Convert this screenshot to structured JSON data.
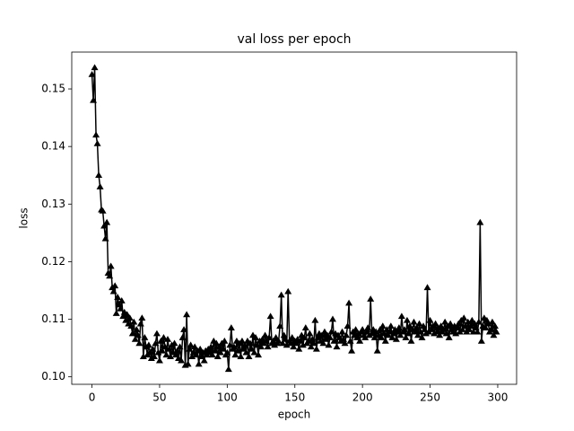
{
  "chart_data": {
    "type": "line",
    "title": "val loss per epoch",
    "xlabel": "epoch",
    "ylabel": "loss",
    "xlim": [
      -14.95,
      313.95
    ],
    "ylim": [
      0.0987,
      0.1564
    ],
    "xticks": [
      0,
      50,
      100,
      150,
      200,
      250,
      300
    ],
    "yticks": [
      {
        "value": 0.1,
        "label": "0.10"
      },
      0.11,
      0.12,
      0.13,
      0.14,
      0.15
    ],
    "grid": false,
    "marker": "triangle",
    "series": [
      {
        "name": "val loss",
        "color": "#000000",
        "x": [
          0,
          1,
          2,
          3,
          4,
          5,
          6,
          7,
          8,
          9,
          10,
          11,
          12,
          13,
          14,
          15,
          16,
          17,
          18,
          19,
          20,
          21,
          22,
          23,
          24,
          25,
          26,
          27,
          28,
          29,
          30,
          31,
          32,
          33,
          34,
          35,
          36,
          37,
          38,
          39,
          40,
          41,
          42,
          43,
          44,
          45,
          46,
          47,
          48,
          49,
          50,
          51,
          52,
          53,
          54,
          55,
          56,
          57,
          58,
          59,
          60,
          61,
          62,
          63,
          64,
          65,
          66,
          67,
          68,
          69,
          70,
          71,
          72,
          73,
          74,
          75,
          76,
          77,
          78,
          79,
          80,
          81,
          82,
          83,
          84,
          85,
          86,
          87,
          88,
          89,
          90,
          91,
          92,
          93,
          94,
          95,
          96,
          97,
          98,
          99,
          100,
          101,
          102,
          103,
          104,
          105,
          106,
          107,
          108,
          109,
          110,
          111,
          112,
          113,
          114,
          115,
          116,
          117,
          118,
          119,
          120,
          121,
          122,
          123,
          124,
          125,
          126,
          127,
          128,
          129,
          130,
          131,
          132,
          133,
          134,
          135,
          136,
          137,
          138,
          139,
          140,
          141,
          142,
          143,
          144,
          145,
          146,
          147,
          148,
          149,
          150,
          151,
          152,
          153,
          154,
          155,
          156,
          157,
          158,
          159,
          160,
          161,
          162,
          163,
          164,
          165,
          166,
          167,
          168,
          169,
          170,
          171,
          172,
          173,
          174,
          175,
          176,
          177,
          178,
          179,
          180,
          181,
          182,
          183,
          184,
          185,
          186,
          187,
          188,
          189,
          190,
          191,
          192,
          193,
          194,
          195,
          196,
          197,
          198,
          199,
          200,
          201,
          202,
          203,
          204,
          205,
          206,
          207,
          208,
          209,
          210,
          211,
          212,
          213,
          214,
          215,
          216,
          217,
          218,
          219,
          220,
          221,
          222,
          223,
          224,
          225,
          226,
          227,
          228,
          229,
          230,
          231,
          232,
          233,
          234,
          235,
          236,
          237,
          238,
          239,
          240,
          241,
          242,
          243,
          244,
          245,
          246,
          247,
          248,
          249,
          250,
          251,
          252,
          253,
          254,
          255,
          256,
          257,
          258,
          259,
          260,
          261,
          262,
          263,
          264,
          265,
          266,
          267,
          268,
          269,
          270,
          271,
          272,
          273,
          274,
          275,
          276,
          277,
          278,
          279,
          280,
          281,
          282,
          283,
          284,
          285,
          286,
          287,
          288,
          289,
          290,
          291,
          292,
          293,
          294,
          295,
          296,
          297,
          298,
          299
        ],
        "values": [
          0.1525,
          0.148,
          0.1537,
          0.142,
          0.1405,
          0.135,
          0.133,
          0.129,
          0.1288,
          0.1262,
          0.124,
          0.1268,
          0.118,
          0.1175,
          0.1192,
          0.1155,
          0.1148,
          0.1158,
          0.111,
          0.1138,
          0.1125,
          0.1118,
          0.1132,
          0.1105,
          0.1112,
          0.1098,
          0.1108,
          0.1092,
          0.1102,
          0.1088,
          0.1075,
          0.1095,
          0.1065,
          0.1082,
          0.1072,
          0.1058,
          0.1092,
          0.1102,
          0.1035,
          0.1068,
          0.1052,
          0.1038,
          0.1055,
          0.1042,
          0.1032,
          0.1048,
          0.1035,
          0.1058,
          0.1075,
          0.1042,
          0.1028,
          0.1062,
          0.1045,
          0.1068,
          0.1052,
          0.1038,
          0.1065,
          0.1048,
          0.1035,
          0.1055,
          0.1042,
          0.1058,
          0.1038,
          0.1045,
          0.1032,
          0.1052,
          0.1028,
          0.1068,
          0.1082,
          0.102,
          0.1108,
          0.1022,
          0.1048,
          0.1055,
          0.1035,
          0.1042,
          0.1052,
          0.1038,
          0.1045,
          0.1022,
          0.1048,
          0.1035,
          0.1042,
          0.1028,
          0.1045,
          0.1038,
          0.1048,
          0.1042,
          0.1052,
          0.1038,
          0.1062,
          0.1045,
          0.1058,
          0.1035,
          0.1052,
          0.1042,
          0.1058,
          0.1048,
          0.1062,
          0.1038,
          0.1042,
          0.1013,
          0.1055,
          0.1085,
          0.1048,
          0.1052,
          0.1038,
          0.1062,
          0.1045,
          0.1058,
          0.1035,
          0.1062,
          0.1048,
          0.1055,
          0.1042,
          0.1062,
          0.1035,
          0.1058,
          0.1048,
          0.1072,
          0.1042,
          0.1068,
          0.1055,
          0.1038,
          0.1062,
          0.1052,
          0.1065,
          0.1058,
          0.1072,
          0.1062,
          0.1052,
          0.1068,
          0.1105,
          0.1058,
          0.1062,
          0.1055,
          0.1068,
          0.1058,
          0.1062,
          0.1088,
          0.1142,
          0.1058,
          0.1072,
          0.1065,
          0.1055,
          0.1148,
          0.1062,
          0.1058,
          0.1068,
          0.1052,
          0.1062,
          0.1058,
          0.1065,
          0.1048,
          0.1062,
          0.1072,
          0.1055,
          0.1068,
          0.1085,
          0.1058,
          0.1062,
          0.1075,
          0.1052,
          0.1065,
          0.1058,
          0.1098,
          0.1048,
          0.1068,
          0.1075,
          0.1062,
          0.1072,
          0.1058,
          0.1078,
          0.1065,
          0.1072,
          0.1055,
          0.1068,
          0.1078,
          0.11,
          0.1062,
          0.1075,
          0.1052,
          0.1072,
          0.1068,
          0.1062,
          0.1078,
          0.1065,
          0.1058,
          0.1072,
          0.1088,
          0.1128,
          0.1062,
          0.1045,
          0.1078,
          0.1072,
          0.1082,
          0.1068,
          0.1075,
          0.1062,
          0.1078,
          0.1082,
          0.1072,
          0.1068,
          0.1078,
          0.1085,
          0.1072,
          0.1135,
          0.1075,
          0.1082,
          0.1068,
          0.1078,
          0.1045,
          0.1072,
          0.1082,
          0.1068,
          0.1088,
          0.1075,
          0.1062,
          0.1082,
          0.1072,
          0.1078,
          0.1088,
          0.1068,
          0.1075,
          0.1082,
          0.1065,
          0.1078,
          0.1085,
          0.1072,
          0.1105,
          0.1078,
          0.1082,
          0.1068,
          0.1098,
          0.1075,
          0.1088,
          0.1062,
          0.1082,
          0.1095,
          0.1078,
          0.1085,
          0.1072,
          0.1092,
          0.1078,
          0.1068,
          0.1088,
          0.1082,
          0.1075,
          0.1155,
          0.1078,
          0.1098,
          0.1082,
          0.1088,
          0.1075,
          0.1092,
          0.1078,
          0.1085,
          0.1072,
          0.1088,
          0.1078,
          0.1082,
          0.1095,
          0.1075,
          0.1088,
          0.1068,
          0.1092,
          0.1082,
          0.1078,
          0.1088,
          0.1075,
          0.1085,
          0.1092,
          0.1078,
          0.1098,
          0.1082,
          0.1102,
          0.1088,
          0.1078,
          0.1095,
          0.1082,
          0.1088,
          0.1098,
          0.1078,
          0.1092,
          0.1085,
          0.1078,
          0.1095,
          0.1268,
          0.1062,
          0.1088,
          0.1102,
          0.1085,
          0.1098,
          0.1092,
          0.1078,
          0.1082,
          0.1095,
          0.1072,
          0.1088,
          0.1078
        ]
      }
    ]
  }
}
